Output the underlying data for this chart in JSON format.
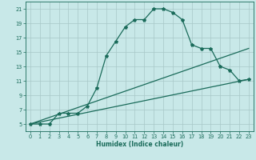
{
  "title": "",
  "xlabel": "Humidex (Indice chaleur)",
  "ylabel": "",
  "background_color": "#c8e8e8",
  "grid_color": "#a8c8c8",
  "line_color": "#1a6b5a",
  "xlim": [
    -0.5,
    23.5
  ],
  "ylim": [
    4,
    22
  ],
  "xticks": [
    0,
    1,
    2,
    3,
    4,
    5,
    6,
    7,
    8,
    9,
    10,
    11,
    12,
    13,
    14,
    15,
    16,
    17,
    18,
    19,
    20,
    21,
    22,
    23
  ],
  "yticks": [
    5,
    7,
    9,
    11,
    13,
    15,
    17,
    19,
    21
  ],
  "curve1_x": [
    0,
    1,
    2,
    3,
    4,
    5,
    6,
    7,
    8,
    9,
    10,
    11,
    12,
    13,
    14,
    15,
    16,
    17,
    18,
    19,
    20,
    21,
    22,
    23
  ],
  "curve1_y": [
    5,
    5,
    5,
    6.5,
    6.5,
    6.5,
    7.5,
    10,
    14.5,
    16.5,
    18.5,
    19.5,
    19.5,
    21,
    21,
    20.5,
    19.5,
    16,
    15.5,
    15.5,
    13,
    12.5,
    11,
    11.2
  ],
  "curve2_x": [
    0,
    23
  ],
  "curve2_y": [
    5,
    15.5
  ],
  "curve3_x": [
    0,
    23
  ],
  "curve3_y": [
    5,
    11.2
  ],
  "marker": "*",
  "markersize": 3.0,
  "linewidth": 0.9,
  "xlabel_fontsize": 5.5,
  "tick_fontsize": 4.8
}
